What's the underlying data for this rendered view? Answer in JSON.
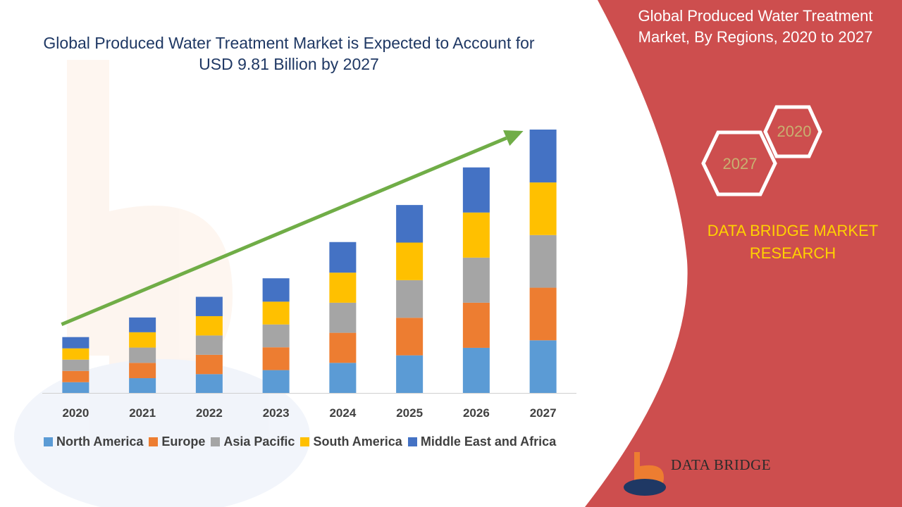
{
  "chart_data": {
    "type": "bar",
    "stacked": true,
    "title": "Global Produced Water Treatment Market is Expected to Account for USD 9.81 Billion by 2027",
    "categories": [
      "2020",
      "2021",
      "2022",
      "2023",
      "2024",
      "2025",
      "2026",
      "2027"
    ],
    "series": [
      {
        "name": "North America",
        "color": "#5b9bd5",
        "values": [
          0.4,
          0.55,
          0.7,
          0.85,
          1.12,
          1.4,
          1.68,
          1.96
        ]
      },
      {
        "name": "Europe",
        "color": "#ed7d31",
        "values": [
          0.42,
          0.57,
          0.72,
          0.85,
          1.12,
          1.4,
          1.68,
          1.96
        ]
      },
      {
        "name": "Asia Pacific",
        "color": "#a5a5a5",
        "values": [
          0.42,
          0.57,
          0.72,
          0.85,
          1.12,
          1.4,
          1.68,
          1.96
        ]
      },
      {
        "name": "South America",
        "color": "#ffc000",
        "values": [
          0.42,
          0.57,
          0.72,
          0.85,
          1.12,
          1.4,
          1.68,
          1.96
        ]
      },
      {
        "name": "Middle East and Africa",
        "color": "#4472c4",
        "values": [
          0.42,
          0.55,
          0.72,
          0.87,
          1.14,
          1.4,
          1.68,
          1.97
        ]
      }
    ],
    "ylim": [
      0,
      9.81
    ],
    "grid": false,
    "legend": "bottom",
    "trend_arrow": true
  },
  "panel": {
    "title": "Global Produced Water Treatment Market, By Regions, 2020 to 2027",
    "hex_labels": [
      "2020",
      "2027"
    ],
    "brand": "DATA BRIDGE MARKET RESEARCH",
    "logo_text": "DATA BRIDGE"
  },
  "colors": {
    "panel_red": "#cd4e4e",
    "arrow_green": "#70ad47",
    "title_blue": "#1f3864"
  }
}
